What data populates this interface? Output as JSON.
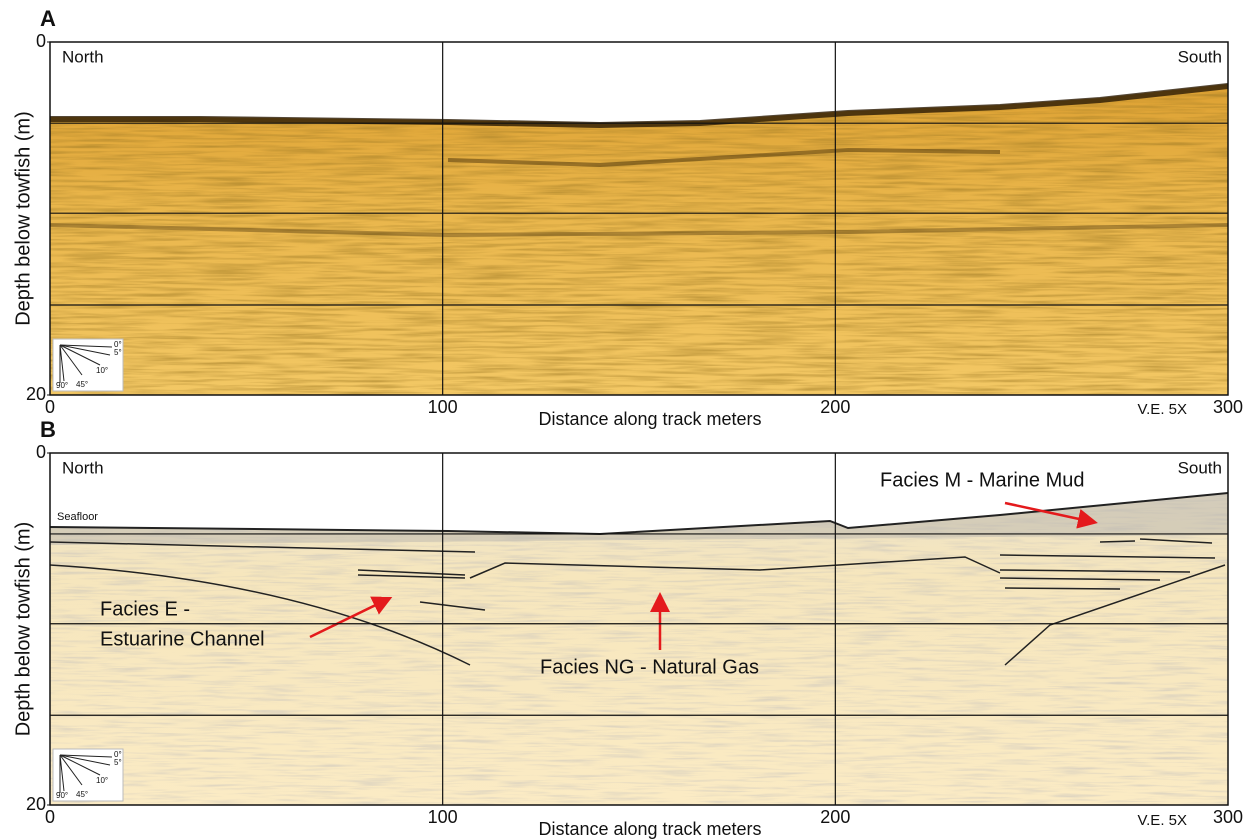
{
  "chart_data": [
    {
      "type": "profile",
      "title": "A",
      "xlabel": "Distance along track meters",
      "ylabel": "Depth below towfish (m)",
      "xlim": [
        0,
        300
      ],
      "xticks": [
        0,
        100,
        200,
        300
      ],
      "ylim": [
        0,
        20
      ],
      "yticks": [
        0,
        20
      ],
      "y_inverted": true,
      "ygrid": [
        4.6,
        9.7,
        14.9
      ],
      "grid": true,
      "annotations": [
        "North",
        "South",
        "V.E. 5X"
      ],
      "dip_scale_labels": [
        "0°",
        "5°",
        "10°",
        "45°",
        "90°"
      ]
    },
    {
      "type": "profile",
      "title": "B",
      "xlabel": "Distance along track meters",
      "ylabel": "Depth below towfish (m)",
      "xlim": [
        0,
        300
      ],
      "xticks": [
        0,
        100,
        200,
        300
      ],
      "ylim": [
        0,
        20
      ],
      "yticks": [
        0,
        20
      ],
      "y_inverted": true,
      "ygrid": [
        4.6,
        9.7,
        14.9
      ],
      "grid": true,
      "annotations": [
        "North",
        "South",
        "V.E. 5X",
        "Seafloor",
        "Facies M - Marine Mud",
        "Facies E -",
        "Estuarine Channel",
        "Facies NG - Natural Gas"
      ],
      "dip_scale_labels": [
        "0°",
        "5°",
        "10°",
        "45°",
        "90°"
      ]
    }
  ]
}
